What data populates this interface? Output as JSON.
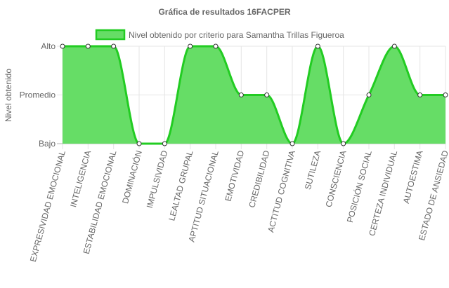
{
  "chart_data": {
    "type": "area",
    "title": "Gráfica de resultados 16FACPER",
    "ylabel": "Nivel obtenido",
    "xlabel": "",
    "y_levels": [
      "Bajo",
      "Promedio",
      "Alto"
    ],
    "categories": [
      "EXPRESIVIDAD EMOCIONAL",
      "INTELIGENCIA",
      "ESTABILIDAD EMOCIONAL",
      "DOMINACIÓN",
      "IMPULSIVIDAD",
      "LEALTAD GRUPAL",
      "APTITUD SITUACIONAL",
      "EMOTIVIDAD",
      "CREDIBILIDAD",
      "ACTITUD COGNITIVA",
      "SUTILEZA",
      "CONSCIENCIA",
      "POSICIÓN SOCIAL",
      "CERTEZA INDIVIDUAL",
      "AUTOESTIMA",
      "ESTADO DE ANSIEDAD"
    ],
    "series": [
      {
        "name": "Nivel obtenido por criterio para Samantha Trillas Figueroa",
        "values": [
          2,
          2,
          2,
          0,
          0,
          2,
          2,
          1,
          1,
          0,
          2,
          0,
          1,
          2,
          1,
          1
        ]
      }
    ],
    "legend_position": "top",
    "grid": true,
    "colors": {
      "fill": "#66dd66",
      "stroke": "#22cc22",
      "point_fill": "#ffffff",
      "point_stroke": "#333333",
      "grid": "#e5e5e5",
      "grid_strong": "#b0b0b0",
      "text": "#666666"
    }
  }
}
